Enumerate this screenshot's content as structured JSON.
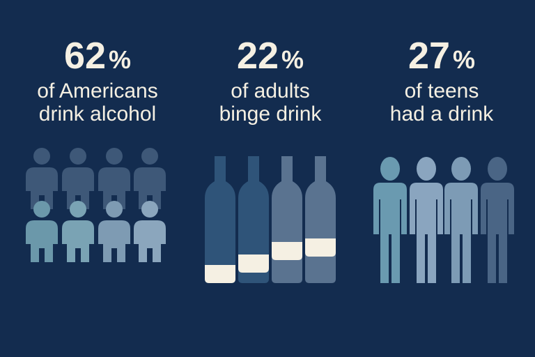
{
  "stats": [
    {
      "number": "62",
      "unit": "%",
      "lines": [
        "of Americans",
        "drink alcohol"
      ]
    },
    {
      "number": "22",
      "unit": "%",
      "lines": [
        "of adults",
        "binge drink"
      ]
    },
    {
      "number": "27",
      "unit": "%",
      "lines": [
        "of teens",
        "had a drink"
      ]
    }
  ]
}
